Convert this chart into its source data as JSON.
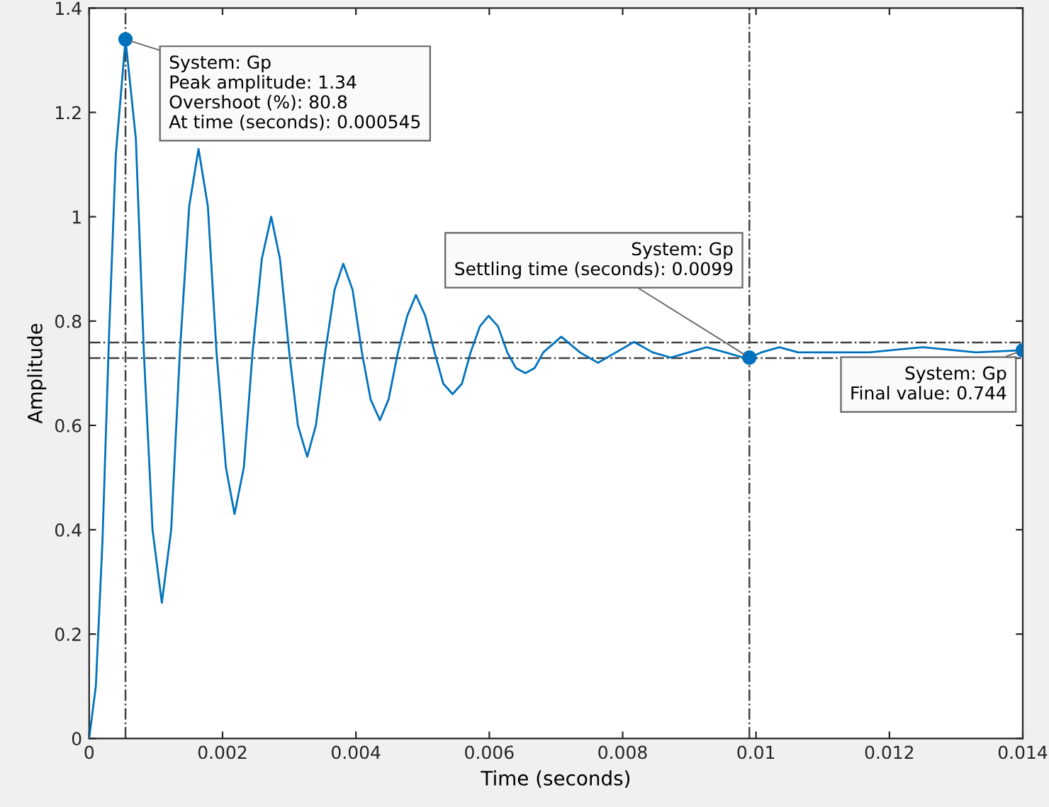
{
  "chart_data": {
    "type": "line",
    "xlabel": "Time (seconds)",
    "ylabel": "Amplitude",
    "xlim": [
      0,
      0.014
    ],
    "ylim": [
      0,
      1.4
    ],
    "xticks": [
      0,
      0.002,
      0.004,
      0.006,
      0.008,
      0.01,
      0.012,
      0.014
    ],
    "yticks": [
      0,
      0.2,
      0.4,
      0.6,
      0.8,
      1,
      1.2,
      1.4
    ],
    "grid": false,
    "legend": false,
    "series": [
      {
        "color": "#0072bd",
        "marker": "none",
        "x": [
          0,
          0.0001,
          0.0002,
          0.0003,
          0.0004,
          0.000545,
          0.0007,
          0.00082,
          0.00095,
          0.00109,
          0.00123,
          0.00136,
          0.0015,
          0.00164,
          0.00178,
          0.00191,
          0.00205,
          0.00218,
          0.00232,
          0.00245,
          0.00259,
          0.00273,
          0.00286,
          0.003,
          0.00313,
          0.00327,
          0.0034,
          0.00354,
          0.00368,
          0.00381,
          0.00395,
          0.00409,
          0.00422,
          0.00436,
          0.00449,
          0.00463,
          0.00477,
          0.0049,
          0.00504,
          0.00518,
          0.00531,
          0.00545,
          0.00559,
          0.00572,
          0.00586,
          0.00599,
          0.00613,
          0.00627,
          0.0064,
          0.00654,
          0.00668,
          0.00681,
          0.00708,
          0.00736,
          0.00763,
          0.0079,
          0.00817,
          0.00845,
          0.00872,
          0.00899,
          0.00926,
          0.00954,
          0.00981,
          0.0099,
          0.01008,
          0.01035,
          0.01063,
          0.0109,
          0.0117,
          0.0125,
          0.0133,
          0.014
        ],
        "values": [
          0,
          0.1,
          0.38,
          0.78,
          1.12,
          1.34,
          1.15,
          0.74,
          0.4,
          0.26,
          0.4,
          0.74,
          1.02,
          1.13,
          1.02,
          0.74,
          0.52,
          0.43,
          0.52,
          0.74,
          0.92,
          1.0,
          0.92,
          0.74,
          0.6,
          0.54,
          0.6,
          0.74,
          0.86,
          0.91,
          0.86,
          0.74,
          0.65,
          0.61,
          0.65,
          0.74,
          0.81,
          0.85,
          0.81,
          0.74,
          0.68,
          0.66,
          0.68,
          0.74,
          0.79,
          0.81,
          0.79,
          0.74,
          0.71,
          0.7,
          0.71,
          0.74,
          0.77,
          0.74,
          0.72,
          0.74,
          0.76,
          0.74,
          0.73,
          0.74,
          0.75,
          0.74,
          0.73,
          0.73,
          0.74,
          0.75,
          0.74,
          0.74,
          0.74,
          0.75,
          0.74,
          0.744
        ]
      },
      {
        "type": "scatter",
        "color": "#0072bd",
        "marker": "circle",
        "x": [
          0.000545,
          0.0099,
          0.014
        ],
        "values": [
          1.34,
          0.73,
          0.744
        ]
      }
    ],
    "ref_lines": [
      {
        "axis": "y",
        "value": 0.759,
        "color": "#404040",
        "line_style": "dashdot"
      },
      {
        "axis": "y",
        "value": 0.729,
        "color": "#404040",
        "line_style": "dashdot"
      },
      {
        "axis": "x",
        "value": 0.000545,
        "color": "#404040",
        "line_style": "dashdot"
      },
      {
        "axis": "x",
        "value": 0.0099,
        "color": "#404040",
        "line_style": "dashdot"
      }
    ],
    "annotations": [
      {
        "text": "System: Gp\nPeak amplitude: 1.34\nOvershoot (%): 80.8\nAt time (seconds): 0.000545",
        "x": 0.000545,
        "y": 1.34
      },
      {
        "text": "System: Gp\nSettling time (seconds): 0.0099",
        "x": 0.0099,
        "y": 0.73
      },
      {
        "text": "System: Gp\nFinal value: 0.744",
        "x": 0.014,
        "y": 0.744
      }
    ]
  }
}
